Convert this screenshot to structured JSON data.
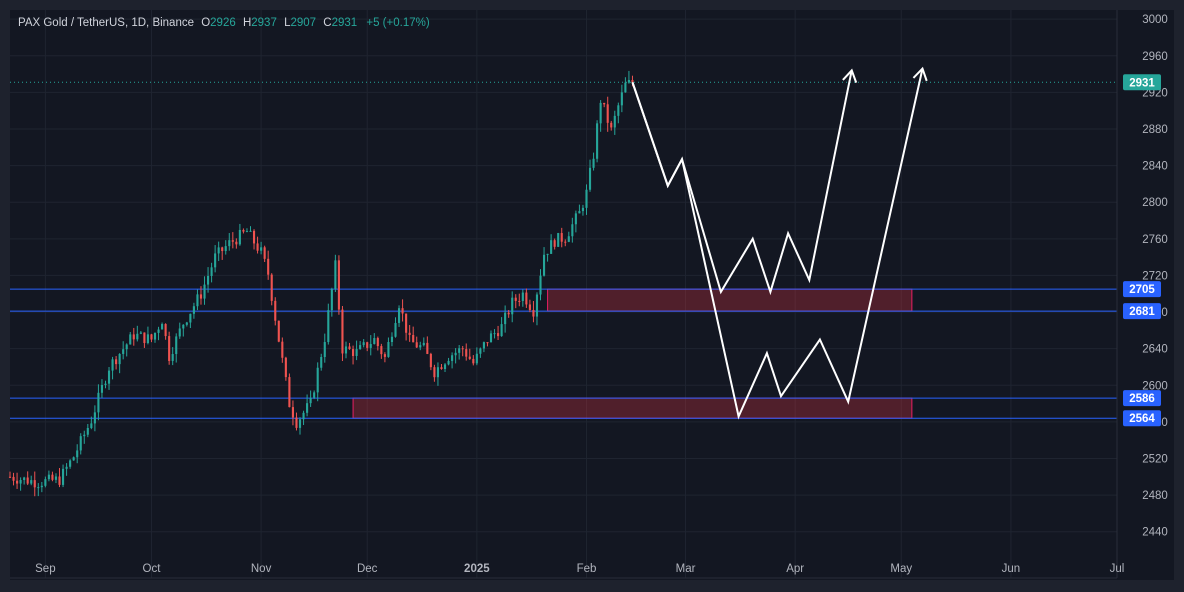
{
  "header": {
    "title": "PAX Gold / TetherUS, 1D, Binance",
    "o_label": "O",
    "o_value": "2926",
    "h_label": "H",
    "h_value": "2937",
    "l_label": "L",
    "l_value": "2907",
    "c_label": "C",
    "c_value": "2931",
    "change": "+5 (+0.17%)"
  },
  "colors": {
    "background": "#131722",
    "frame": "#1e222d",
    "grid": "#1f2430",
    "axis_text": "#b2b5be",
    "up": "#26a69a",
    "down": "#ef5350",
    "level_line": "#2962ff",
    "zone_fill": "rgba(242,54,69,0.28)",
    "zone_border": "#e91e63",
    "projection": "#ffffff"
  },
  "chart_data": {
    "type": "candlestick",
    "symbol": "PAX Gold / TetherUS",
    "timeframe": "1D",
    "exchange": "Binance",
    "ylim": [
      2420,
      3010
    ],
    "y_ticks": [
      2440,
      2480,
      2520,
      2560,
      2600,
      2640,
      2680,
      2720,
      2760,
      2800,
      2840,
      2880,
      2920,
      2960,
      3000
    ],
    "x_ticks": [
      {
        "day": 0,
        "label": "Sep"
      },
      {
        "day": 30,
        "label": "Oct"
      },
      {
        "day": 61,
        "label": "Nov"
      },
      {
        "day": 91,
        "label": "Dec"
      },
      {
        "day": 122,
        "label": "2025"
      },
      {
        "day": 153,
        "label": "Feb"
      },
      {
        "day": 181,
        "label": "Mar"
      },
      {
        "day": 212,
        "label": "Apr"
      },
      {
        "day": 242,
        "label": "May"
      },
      {
        "day": 273,
        "label": "Jun"
      },
      {
        "day": 303,
        "label": "Jul"
      }
    ],
    "x_range_days": [
      -10,
      303
    ],
    "price_anchors": [
      [
        -10,
        2500
      ],
      [
        -2,
        2494
      ],
      [
        4,
        2497
      ],
      [
        8,
        2522
      ],
      [
        13,
        2562
      ],
      [
        18,
        2620
      ],
      [
        25,
        2655
      ],
      [
        30,
        2650
      ],
      [
        33,
        2672
      ],
      [
        35,
        2632
      ],
      [
        39,
        2668
      ],
      [
        44,
        2700
      ],
      [
        48,
        2740
      ],
      [
        52,
        2755
      ],
      [
        57,
        2768
      ],
      [
        61,
        2745
      ],
      [
        63,
        2722
      ],
      [
        66,
        2650
      ],
      [
        69,
        2580
      ],
      [
        71,
        2560
      ],
      [
        75,
        2580
      ],
      [
        79,
        2652
      ],
      [
        82,
        2730
      ],
      [
        84,
        2640
      ],
      [
        88,
        2636
      ],
      [
        93,
        2650
      ],
      [
        96,
        2630
      ],
      [
        100,
        2690
      ],
      [
        103,
        2648
      ],
      [
        107,
        2640
      ],
      [
        110,
        2615
      ],
      [
        114,
        2632
      ],
      [
        118,
        2640
      ],
      [
        121,
        2624
      ],
      [
        125,
        2650
      ],
      [
        129,
        2664
      ],
      [
        132,
        2690
      ],
      [
        135,
        2700
      ],
      [
        138,
        2682
      ],
      [
        141,
        2744
      ],
      [
        144,
        2758
      ],
      [
        147,
        2762
      ],
      [
        151,
        2788
      ],
      [
        153,
        2810
      ],
      [
        155,
        2852
      ],
      [
        157,
        2912
      ],
      [
        160,
        2878
      ],
      [
        162,
        2905
      ],
      [
        164,
        2928
      ],
      [
        166,
        2931
      ]
    ],
    "last_price": "2931",
    "price_line": 2931,
    "horizontal_levels": [
      {
        "price": 2705,
        "label": "2705"
      },
      {
        "price": 2681,
        "label": "2681"
      },
      {
        "price": 2586,
        "label": "2586"
      },
      {
        "price": 2564,
        "label": "2564"
      }
    ],
    "zones": [
      {
        "day_start": 142,
        "day_end": 245,
        "price_top": 2705,
        "price_bottom": 2681
      },
      {
        "day_start": 87,
        "day_end": 245,
        "price_top": 2586,
        "price_bottom": 2564
      }
    ],
    "projection_path_1": [
      [
        166,
        2931
      ],
      [
        176,
        2818
      ],
      [
        180,
        2847
      ],
      [
        191,
        2702
      ],
      [
        200,
        2760
      ],
      [
        205,
        2702
      ],
      [
        210,
        2766
      ],
      [
        216,
        2715
      ],
      [
        228,
        2944
      ]
    ],
    "projection_path_2": [
      [
        166,
        2931
      ],
      [
        176,
        2818
      ],
      [
        180,
        2847
      ],
      [
        196,
        2566
      ],
      [
        204,
        2635
      ],
      [
        208,
        2588
      ],
      [
        219,
        2650
      ],
      [
        227,
        2582
      ],
      [
        248,
        2946
      ]
    ]
  }
}
